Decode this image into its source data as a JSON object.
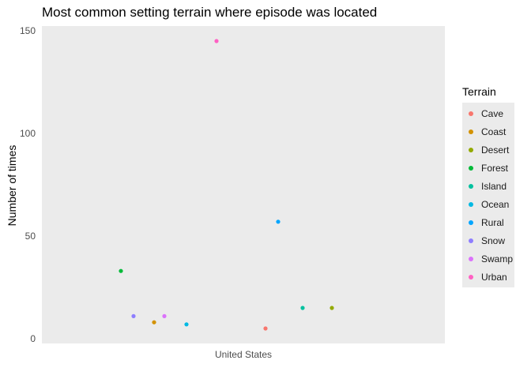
{
  "chart_data": {
    "type": "scatter",
    "title": "Most common setting terrain where episode was located",
    "xlabel": "",
    "ylabel": "Number of times",
    "categories": [
      "United States"
    ],
    "ylim": [
      0,
      150
    ],
    "yticks": [
      0,
      50,
      100,
      150
    ],
    "grid": false,
    "legend": {
      "title": "Terrain",
      "placement": "right"
    },
    "series": [
      {
        "name": "Cave",
        "color": "#F8766D",
        "x": "United States",
        "y": 5
      },
      {
        "name": "Coast",
        "color": "#D39200",
        "x": "United States",
        "y": 8
      },
      {
        "name": "Desert",
        "color": "#93AA00",
        "x": "United States",
        "y": 15
      },
      {
        "name": "Forest",
        "color": "#00BA38",
        "x": "United States",
        "y": 33
      },
      {
        "name": "Island",
        "color": "#00C19F",
        "x": "United States",
        "y": 15
      },
      {
        "name": "Ocean",
        "color": "#00B9E3",
        "x": "United States",
        "y": 7
      },
      {
        "name": "Rural",
        "color": "#00A5FF",
        "x": "United States",
        "y": 57
      },
      {
        "name": "Snow",
        "color": "#8E7EFF",
        "x": "United States",
        "y": 11
      },
      {
        "name": "Swamp",
        "color": "#DB72FB",
        "x": "United States",
        "y": 11
      },
      {
        "name": "Urban",
        "color": "#FF61C3",
        "x": "United States",
        "y": 145
      }
    ]
  }
}
